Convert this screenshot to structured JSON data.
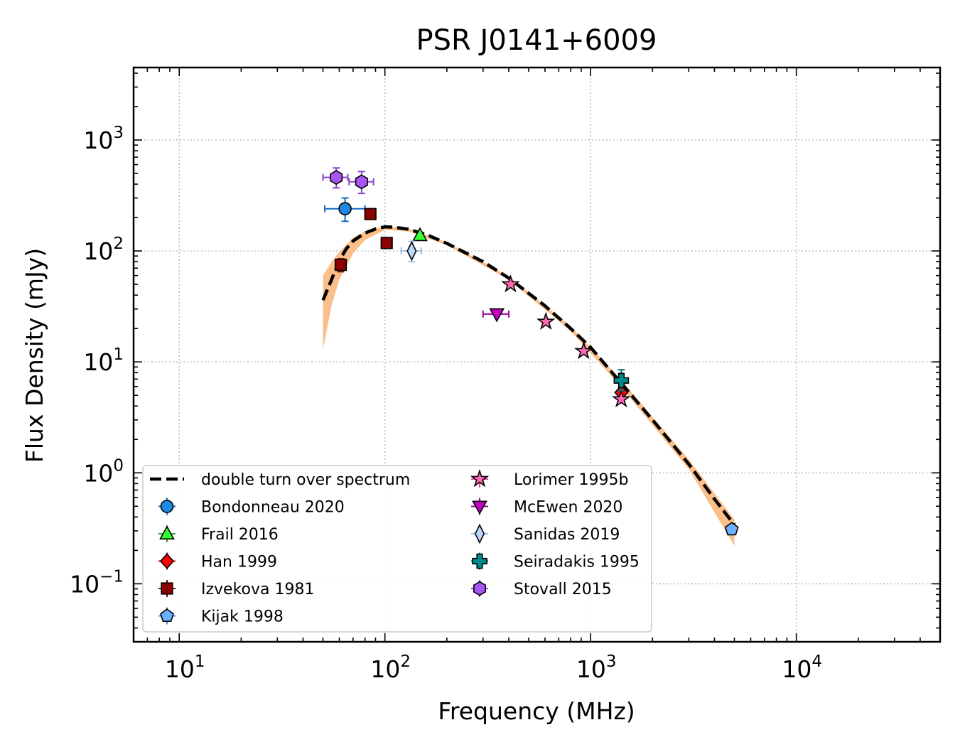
{
  "chart_data": {
    "type": "scatter",
    "title": "PSR J0141+6009",
    "xlabel": "Frequency (MHz)",
    "ylabel": "Flux Density (mJy)",
    "xscale": "log",
    "yscale": "log",
    "xlim": [
      6,
      50000
    ],
    "ylim": [
      0.03,
      4500
    ],
    "xticks": [
      {
        "base": "10",
        "exp": "1",
        "value": 10
      },
      {
        "base": "10",
        "exp": "2",
        "value": 100
      },
      {
        "base": "10",
        "exp": "3",
        "value": 1000
      },
      {
        "base": "10",
        "exp": "4",
        "value": 10000
      }
    ],
    "yticks": [
      {
        "base": "10",
        "exp": "−1",
        "value": 0.1
      },
      {
        "base": "10",
        "exp": "0",
        "value": 1
      },
      {
        "base": "10",
        "exp": "1",
        "value": 10
      },
      {
        "base": "10",
        "exp": "2",
        "value": 100
      },
      {
        "base": "10",
        "exp": "3",
        "value": 1000
      }
    ],
    "grid": true,
    "legend_position": "lower-left",
    "model": {
      "name": "double turn over spectrum",
      "color": "#000000",
      "band_color": "#fbbf8a",
      "curve": [
        [
          50,
          36
        ],
        [
          55,
          55
        ],
        [
          60,
          82
        ],
        [
          65,
          105
        ],
        [
          70,
          123
        ],
        [
          80,
          145
        ],
        [
          90,
          158
        ],
        [
          100,
          165
        ],
        [
          110,
          164
        ],
        [
          130,
          157
        ],
        [
          160,
          140
        ],
        [
          200,
          117
        ],
        [
          300,
          80
        ],
        [
          400,
          57
        ],
        [
          600,
          32
        ],
        [
          800,
          20
        ],
        [
          1000,
          13.5
        ],
        [
          1400,
          6.5
        ],
        [
          2000,
          3
        ],
        [
          3000,
          1.2
        ],
        [
          4000,
          0.58
        ],
        [
          5000,
          0.34
        ]
      ],
      "band_upper": [
        [
          50,
          60
        ],
        [
          55,
          80
        ],
        [
          60,
          98
        ],
        [
          70,
          132
        ],
        [
          80,
          150
        ],
        [
          100,
          168
        ],
        [
          130,
          160
        ],
        [
          200,
          120
        ],
        [
          400,
          59
        ],
        [
          800,
          21
        ],
        [
          1400,
          7
        ],
        [
          3000,
          1.32
        ],
        [
          5000,
          0.38
        ]
      ],
      "band_lower": [
        [
          50,
          13
        ],
        [
          55,
          32
        ],
        [
          60,
          55
        ],
        [
          70,
          95
        ],
        [
          80,
          125
        ],
        [
          100,
          155
        ],
        [
          130,
          150
        ],
        [
          200,
          113
        ],
        [
          400,
          55
        ],
        [
          800,
          19
        ],
        [
          1400,
          6
        ],
        [
          3000,
          1.08
        ],
        [
          5000,
          0.22
        ]
      ]
    },
    "series": [
      {
        "name": "Bondonneau 2020",
        "marker": "circle",
        "color": "#1565c0",
        "face": "#1e88e5",
        "points": [
          {
            "x": 64,
            "y": 240,
            "xlo": 51,
            "xhi": 80,
            "ylo": 185,
            "yhi": 300
          }
        ]
      },
      {
        "name": "Frail 2016",
        "marker": "triangle-up",
        "color": "#22aa22",
        "face": "#33ff33",
        "points": [
          {
            "x": 148,
            "y": 138
          }
        ]
      },
      {
        "name": "Han 1999",
        "marker": "diamond",
        "color": "#cc0000",
        "face": "#ff0000",
        "points": [
          {
            "x": 1410,
            "y": 5.3
          }
        ]
      },
      {
        "name": "Izvekova 1981",
        "marker": "square",
        "color": "#7a0000",
        "face": "#8b0000",
        "points": [
          {
            "x": 61,
            "y": 75,
            "ylo": 65,
            "yhi": 85
          },
          {
            "x": 85,
            "y": 215
          },
          {
            "x": 102,
            "y": 118
          }
        ]
      },
      {
        "name": "Kijak 1998",
        "marker": "pentagon",
        "color": "#4f8fd8",
        "face": "#6ab0ff",
        "points": [
          {
            "x": 4850,
            "y": 0.31
          }
        ]
      },
      {
        "name": "Lorimer 1995b",
        "marker": "star",
        "color": "#e05090",
        "face": "#ff69b4",
        "points": [
          {
            "x": 408,
            "y": 50
          },
          {
            "x": 606,
            "y": 23
          },
          {
            "x": 925,
            "y": 12.5
          },
          {
            "x": 1408,
            "y": 4.6
          }
        ]
      },
      {
        "name": "McEwen 2020",
        "marker": "triangle-down",
        "color": "#a000a0",
        "face": "#c400c4",
        "points": [
          {
            "x": 350,
            "y": 27,
            "xlo": 300,
            "xhi": 400
          }
        ]
      },
      {
        "name": "Sanidas 2019",
        "marker": "thin-diamond",
        "color": "#9cc0ea",
        "face": "#bcd6f7",
        "points": [
          {
            "x": 135,
            "y": 100,
            "xlo": 120,
            "xhi": 150,
            "ylo": 80,
            "yhi": 122
          }
        ]
      },
      {
        "name": "Seiradakis 1995",
        "marker": "plus",
        "color": "#006e6e",
        "face": "#008b8b",
        "points": [
          {
            "x": 1410,
            "y": 6.8,
            "ylo": 5.5,
            "yhi": 8.5
          }
        ]
      },
      {
        "name": "Stovall 2015",
        "marker": "hexagon",
        "color": "#8844cc",
        "face": "#a855f7",
        "points": [
          {
            "x": 58,
            "y": 460,
            "xlo": 50,
            "xhi": 66,
            "ylo": 370,
            "yhi": 560
          },
          {
            "x": 77,
            "y": 420,
            "xlo": 67,
            "xhi": 88,
            "ylo": 330,
            "yhi": 520
          }
        ]
      }
    ]
  }
}
